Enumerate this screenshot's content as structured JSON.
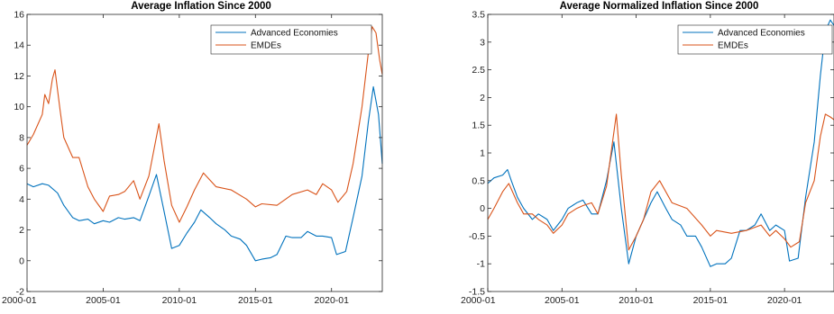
{
  "chart_data": [
    {
      "type": "line",
      "title": "Average Inflation Since 2000",
      "xlabel": "",
      "ylabel": "",
      "xlim": [
        "2000-01",
        "2023-05"
      ],
      "ylim": [
        -2,
        16
      ],
      "xticks": [
        "2000-01",
        "2005-01",
        "2010-01",
        "2015-01",
        "2020-01"
      ],
      "yticks": [
        "-2",
        "0",
        "2",
        "4",
        "6",
        "8",
        "10",
        "12",
        "14",
        "16"
      ],
      "grid": false,
      "legend_position": "top-right",
      "series": [
        {
          "name": "Advanced Economies",
          "color": "#0072BD",
          "points": [
            [
              "2000-01",
              5.0
            ],
            [
              "2000-06",
              4.8
            ],
            [
              "2001-01",
              5.0
            ],
            [
              "2001-06",
              4.9
            ],
            [
              "2002-01",
              4.4
            ],
            [
              "2002-06",
              3.6
            ],
            [
              "2003-01",
              2.8
            ],
            [
              "2003-06",
              2.6
            ],
            [
              "2004-01",
              2.7
            ],
            [
              "2004-06",
              2.4
            ],
            [
              "2005-01",
              2.6
            ],
            [
              "2005-06",
              2.5
            ],
            [
              "2006-01",
              2.8
            ],
            [
              "2006-06",
              2.7
            ],
            [
              "2007-01",
              2.8
            ],
            [
              "2007-06",
              2.6
            ],
            [
              "2008-01",
              4.2
            ],
            [
              "2008-07",
              5.6
            ],
            [
              "2009-01",
              3.2
            ],
            [
              "2009-07",
              0.8
            ],
            [
              "2010-01",
              1.0
            ],
            [
              "2010-07",
              1.8
            ],
            [
              "2011-01",
              2.5
            ],
            [
              "2011-06",
              3.3
            ],
            [
              "2012-01",
              2.8
            ],
            [
              "2012-06",
              2.4
            ],
            [
              "2013-01",
              2.0
            ],
            [
              "2013-06",
              1.6
            ],
            [
              "2014-01",
              1.4
            ],
            [
              "2014-06",
              1.0
            ],
            [
              "2015-01",
              0.0
            ],
            [
              "2015-06",
              0.1
            ],
            [
              "2016-01",
              0.2
            ],
            [
              "2016-06",
              0.4
            ],
            [
              "2017-01",
              1.6
            ],
            [
              "2017-06",
              1.5
            ],
            [
              "2018-01",
              1.5
            ],
            [
              "2018-06",
              1.9
            ],
            [
              "2019-01",
              1.6
            ],
            [
              "2019-06",
              1.6
            ],
            [
              "2020-01",
              1.5
            ],
            [
              "2020-05",
              0.4
            ],
            [
              "2020-12",
              0.6
            ],
            [
              "2021-06",
              2.8
            ],
            [
              "2022-01",
              5.5
            ],
            [
              "2022-06",
              9.0
            ],
            [
              "2022-10",
              11.3
            ],
            [
              "2023-02",
              9.5
            ],
            [
              "2023-05",
              6.3
            ]
          ]
        },
        {
          "name": "EMDEs",
          "color": "#D95319",
          "points": [
            [
              "2000-01",
              7.5
            ],
            [
              "2000-06",
              8.2
            ],
            [
              "2001-01",
              9.5
            ],
            [
              "2001-03",
              10.8
            ],
            [
              "2001-06",
              10.2
            ],
            [
              "2001-09",
              11.8
            ],
            [
              "2001-11",
              12.4
            ],
            [
              "2002-03",
              9.8
            ],
            [
              "2002-06",
              8.0
            ],
            [
              "2003-01",
              6.7
            ],
            [
              "2003-06",
              6.7
            ],
            [
              "2004-01",
              4.8
            ],
            [
              "2004-06",
              4.0
            ],
            [
              "2005-01",
              3.2
            ],
            [
              "2005-06",
              4.2
            ],
            [
              "2006-01",
              4.3
            ],
            [
              "2006-06",
              4.5
            ],
            [
              "2007-01",
              5.2
            ],
            [
              "2007-06",
              4.0
            ],
            [
              "2008-01",
              5.5
            ],
            [
              "2008-09",
              8.9
            ],
            [
              "2009-01",
              6.5
            ],
            [
              "2009-07",
              3.6
            ],
            [
              "2010-01",
              2.5
            ],
            [
              "2010-07",
              3.5
            ],
            [
              "2011-01",
              4.6
            ],
            [
              "2011-08",
              5.7
            ],
            [
              "2012-06",
              4.8
            ],
            [
              "2013-06",
              4.6
            ],
            [
              "2014-06",
              4.0
            ],
            [
              "2015-01",
              3.5
            ],
            [
              "2015-06",
              3.7
            ],
            [
              "2016-06",
              3.6
            ],
            [
              "2017-06",
              4.3
            ],
            [
              "2018-06",
              4.6
            ],
            [
              "2019-01",
              4.3
            ],
            [
              "2019-06",
              5.0
            ],
            [
              "2020-01",
              4.6
            ],
            [
              "2020-06",
              3.8
            ],
            [
              "2021-01",
              4.5
            ],
            [
              "2021-06",
              6.3
            ],
            [
              "2022-01",
              10.0
            ],
            [
              "2022-06",
              13.5
            ],
            [
              "2022-09",
              15.2
            ],
            [
              "2022-12",
              14.8
            ],
            [
              "2023-03",
              13.0
            ],
            [
              "2023-05",
              12.1
            ]
          ]
        }
      ]
    },
    {
      "type": "line",
      "title": "Average Normalized Inflation Since 2000",
      "xlabel": "",
      "ylabel": "",
      "xlim": [
        "2000-01",
        "2023-05"
      ],
      "ylim": [
        -1.5,
        3.5
      ],
      "xticks": [
        "2000-01",
        "2005-01",
        "2010-01",
        "2015-01",
        "2020-01"
      ],
      "yticks": [
        "-1.5",
        "-1",
        "-0.5",
        "0",
        "0.5",
        "1",
        "1.5",
        "2",
        "2.5",
        "3",
        "3.5"
      ],
      "grid": false,
      "legend_position": "top-right",
      "series": [
        {
          "name": "Advanced Economies",
          "color": "#0072BD",
          "points": [
            [
              "2000-01",
              0.45
            ],
            [
              "2000-06",
              0.55
            ],
            [
              "2001-01",
              0.6
            ],
            [
              "2001-05",
              0.7
            ],
            [
              "2001-08",
              0.5
            ],
            [
              "2002-01",
              0.2
            ],
            [
              "2002-06",
              0.0
            ],
            [
              "2003-01",
              -0.2
            ],
            [
              "2003-06",
              -0.1
            ],
            [
              "2004-01",
              -0.2
            ],
            [
              "2004-06",
              -0.4
            ],
            [
              "2005-01",
              -0.2
            ],
            [
              "2005-06",
              0.0
            ],
            [
              "2006-01",
              0.1
            ],
            [
              "2006-06",
              0.15
            ],
            [
              "2007-01",
              -0.1
            ],
            [
              "2007-06",
              -0.1
            ],
            [
              "2008-01",
              0.5
            ],
            [
              "2008-07",
              1.2
            ],
            [
              "2009-01",
              0.0
            ],
            [
              "2009-07",
              -1.0
            ],
            [
              "2010-01",
              -0.5
            ],
            [
              "2010-07",
              -0.2
            ],
            [
              "2011-01",
              0.1
            ],
            [
              "2011-06",
              0.3
            ],
            [
              "2012-01",
              0.0
            ],
            [
              "2012-06",
              -0.2
            ],
            [
              "2013-01",
              -0.3
            ],
            [
              "2013-06",
              -0.5
            ],
            [
              "2014-01",
              -0.5
            ],
            [
              "2014-06",
              -0.7
            ],
            [
              "2015-01",
              -1.05
            ],
            [
              "2015-06",
              -1.0
            ],
            [
              "2016-01",
              -1.0
            ],
            [
              "2016-06",
              -0.9
            ],
            [
              "2017-01",
              -0.4
            ],
            [
              "2017-06",
              -0.4
            ],
            [
              "2018-01",
              -0.3
            ],
            [
              "2018-06",
              -0.1
            ],
            [
              "2019-01",
              -0.4
            ],
            [
              "2019-06",
              -0.3
            ],
            [
              "2020-01",
              -0.4
            ],
            [
              "2020-05",
              -0.95
            ],
            [
              "2020-12",
              -0.9
            ],
            [
              "2021-06",
              0.2
            ],
            [
              "2022-01",
              1.2
            ],
            [
              "2022-06",
              2.4
            ],
            [
              "2022-10",
              3.2
            ],
            [
              "2023-02",
              3.4
            ],
            [
              "2023-05",
              3.3
            ]
          ]
        },
        {
          "name": "EMDEs",
          "color": "#D95319",
          "points": [
            [
              "2000-01",
              -0.2
            ],
            [
              "2000-06",
              0.0
            ],
            [
              "2001-01",
              0.3
            ],
            [
              "2001-06",
              0.45
            ],
            [
              "2002-01",
              0.1
            ],
            [
              "2002-06",
              -0.1
            ],
            [
              "2003-01",
              -0.1
            ],
            [
              "2003-06",
              -0.2
            ],
            [
              "2004-01",
              -0.3
            ],
            [
              "2004-06",
              -0.45
            ],
            [
              "2005-01",
              -0.3
            ],
            [
              "2005-06",
              -0.1
            ],
            [
              "2006-01",
              0.0
            ],
            [
              "2006-06",
              0.05
            ],
            [
              "2007-01",
              0.1
            ],
            [
              "2007-06",
              -0.1
            ],
            [
              "2008-01",
              0.4
            ],
            [
              "2008-09",
              1.7
            ],
            [
              "2009-01",
              0.6
            ],
            [
              "2009-07",
              -0.75
            ],
            [
              "2010-01",
              -0.5
            ],
            [
              "2010-07",
              -0.2
            ],
            [
              "2011-01",
              0.3
            ],
            [
              "2011-08",
              0.5
            ],
            [
              "2012-06",
              0.1
            ],
            [
              "2013-06",
              0.0
            ],
            [
              "2014-06",
              -0.3
            ],
            [
              "2015-01",
              -0.5
            ],
            [
              "2015-06",
              -0.4
            ],
            [
              "2016-06",
              -0.45
            ],
            [
              "2017-06",
              -0.4
            ],
            [
              "2018-06",
              -0.3
            ],
            [
              "2019-01",
              -0.5
            ],
            [
              "2019-06",
              -0.4
            ],
            [
              "2020-01",
              -0.55
            ],
            [
              "2020-06",
              -0.7
            ],
            [
              "2021-01",
              -0.6
            ],
            [
              "2021-06",
              0.1
            ],
            [
              "2022-01",
              0.5
            ],
            [
              "2022-06",
              1.3
            ],
            [
              "2022-10",
              1.7
            ],
            [
              "2023-02",
              1.65
            ],
            [
              "2023-05",
              1.6
            ]
          ]
        }
      ]
    }
  ]
}
